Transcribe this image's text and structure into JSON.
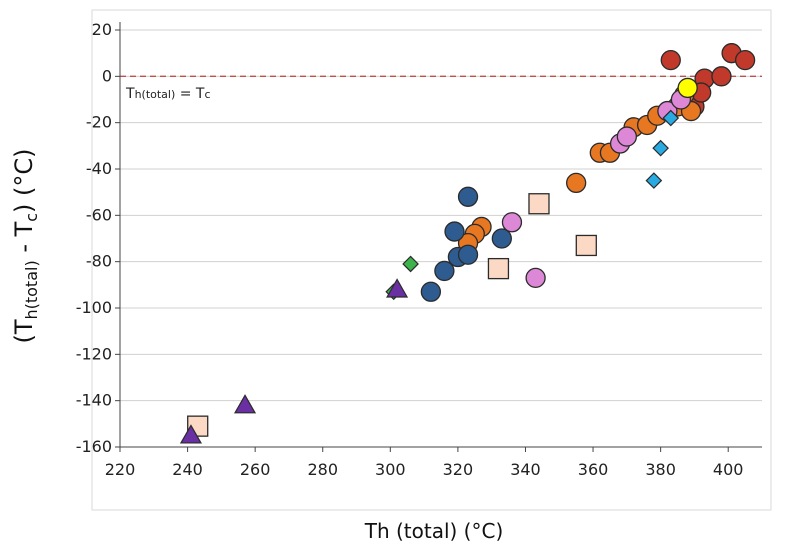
{
  "chart_data": {
    "type": "scatter",
    "xlabel": "Th (total) (°C)",
    "ylabel": {
      "open": "(T",
      "sub1": "h(total)",
      "mid": " - T",
      "sub2": "c",
      "close": ") (°C)"
    },
    "xlim": [
      220,
      410
    ],
    "ylim": [
      -160,
      20
    ],
    "x_ticks": [
      220,
      240,
      260,
      280,
      300,
      320,
      340,
      360,
      380,
      400
    ],
    "y_ticks": [
      20,
      0,
      -20,
      -40,
      -60,
      -80,
      -100,
      -120,
      -140,
      -160
    ],
    "grid": "horizontal",
    "reference_line": {
      "y": 0,
      "label": "Th(total) = Tc",
      "label_parts": {
        "main": "T",
        "sub": "h(total)",
        "mid": " = T",
        "sub2": "c"
      },
      "color": "#c0504d"
    },
    "series": [
      {
        "marker": "circle",
        "color": "#c0392b",
        "points": [
          [
            383,
            7
          ],
          [
            401,
            10
          ],
          [
            405,
            7
          ],
          [
            390,
            -13
          ],
          [
            393,
            -1
          ],
          [
            398,
            0
          ],
          [
            392,
            -7
          ]
        ]
      },
      {
        "marker": "circle",
        "color": "#e87722",
        "points": [
          [
            355,
            -46
          ],
          [
            362,
            -33
          ],
          [
            365,
            -33
          ],
          [
            372,
            -22
          ],
          [
            376,
            -21
          ],
          [
            379,
            -17
          ],
          [
            385,
            -13
          ],
          [
            387,
            -8
          ],
          [
            389,
            -15
          ],
          [
            327,
            -65
          ],
          [
            325,
            -68
          ],
          [
            323,
            -72
          ]
        ]
      },
      {
        "marker": "circle",
        "color": "#2e5c91",
        "points": [
          [
            312,
            -93
          ],
          [
            316,
            -84
          ],
          [
            320,
            -78
          ],
          [
            319,
            -67
          ],
          [
            323,
            -52
          ],
          [
            323,
            -77
          ],
          [
            333,
            -70
          ]
        ]
      },
      {
        "marker": "circle",
        "color": "#dd88d6",
        "points": [
          [
            336,
            -63
          ],
          [
            343,
            -87
          ],
          [
            368,
            -29
          ],
          [
            370,
            -26
          ],
          [
            382,
            -15
          ],
          [
            386,
            -10
          ]
        ]
      },
      {
        "marker": "circle",
        "color": "#ffff00",
        "points": [
          [
            388,
            -5
          ]
        ]
      },
      {
        "marker": "square",
        "color": "#fbd9c4",
        "points": [
          [
            243,
            -151
          ],
          [
            332,
            -83
          ],
          [
            344,
            -55
          ],
          [
            358,
            -73
          ]
        ]
      },
      {
        "marker": "diamond",
        "color": "#29abe2",
        "points": [
          [
            378,
            -45
          ],
          [
            380,
            -31
          ],
          [
            383,
            -18
          ]
        ]
      },
      {
        "marker": "diamond",
        "color": "#3cb44b",
        "points": [
          [
            306,
            -81
          ],
          [
            301,
            -93
          ]
        ]
      },
      {
        "marker": "triangle",
        "color": "#6a2fa3",
        "points": [
          [
            241,
            -155
          ],
          [
            257,
            -142
          ],
          [
            302,
            -92
          ]
        ]
      }
    ]
  }
}
